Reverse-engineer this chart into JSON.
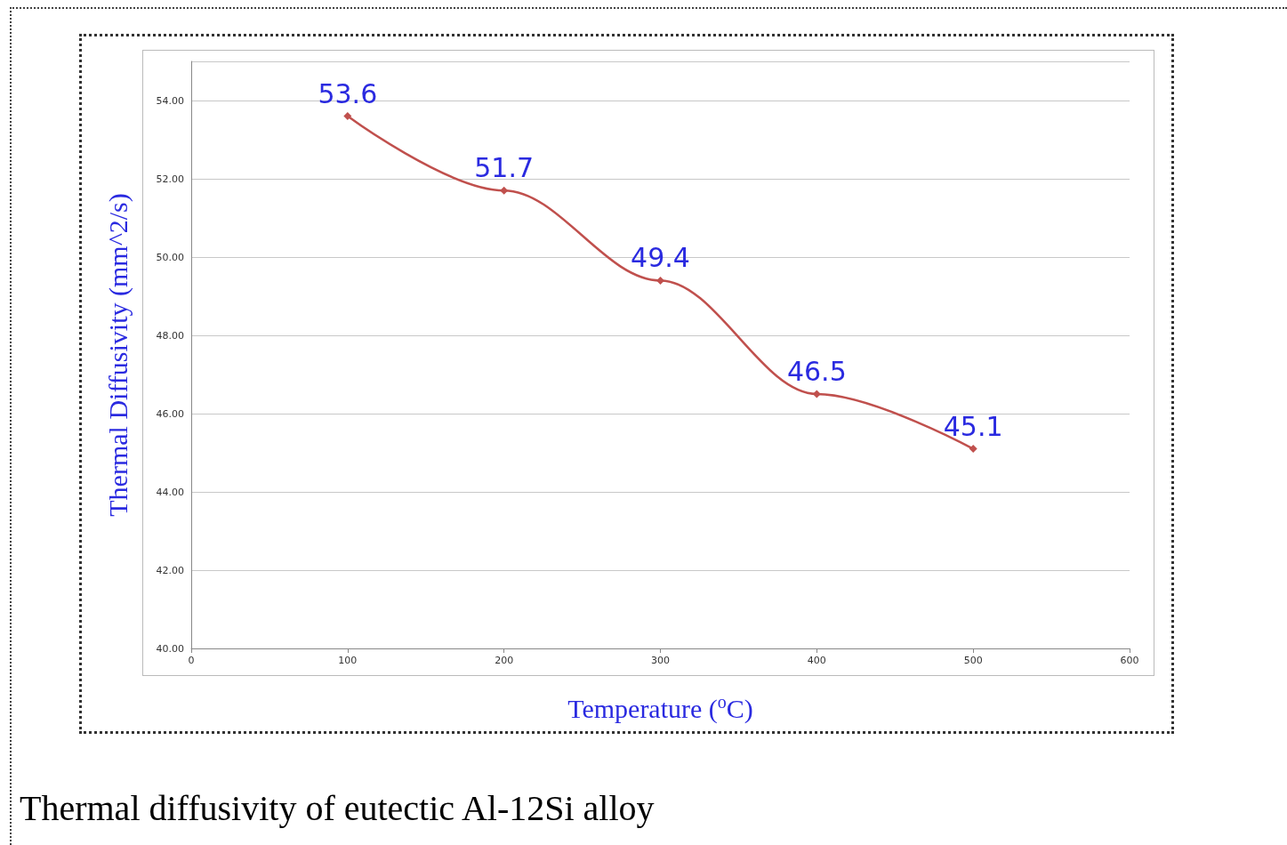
{
  "chart_data": {
    "type": "line",
    "xlabel": "Temperature ($^{o}$C)",
    "ylabel": "Thermal Diffusivity (mm^2/s)",
    "x": [
      100,
      200,
      300,
      400,
      500
    ],
    "series": [
      {
        "color": "#c0504d",
        "values": [
          53.6,
          51.7,
          49.4,
          46.5,
          45.1
        ]
      }
    ],
    "xlim": [
      0,
      600
    ],
    "xticks": [
      0,
      100,
      200,
      300,
      400,
      500,
      600
    ],
    "ylim": [
      40,
      55
    ],
    "yticks": [
      {
        "value": 40,
        "label": "40.00"
      },
      {
        "value": 42,
        "label": "42.00"
      },
      {
        "value": 44,
        "label": "44.00"
      },
      {
        "value": 46,
        "label": "46.00"
      },
      {
        "value": 48,
        "label": "48.00"
      },
      {
        "value": 50,
        "label": "50.00"
      },
      {
        "value": 52,
        "label": "52.00"
      },
      {
        "value": 54,
        "label": "54.00"
      }
    ],
    "grid": "y",
    "marker": "diamond",
    "line_style": "solid",
    "data_labels": true,
    "annotations": [
      "Thermal diffusivity of eutectic Al-12Si alloy"
    ]
  }
}
